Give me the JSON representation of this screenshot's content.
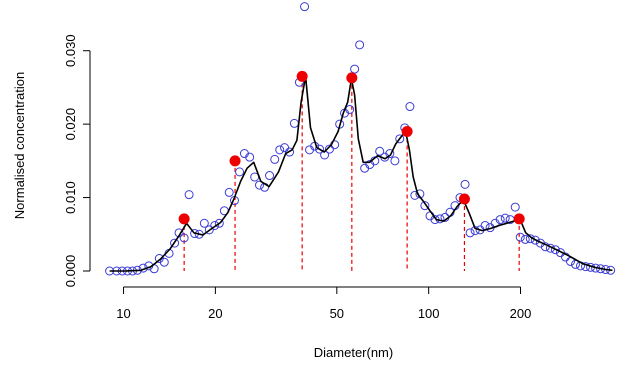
{
  "chart_data": {
    "type": "scatter",
    "title": "",
    "xlabel": "Diameter(nm)",
    "ylabel": "Normalised concentration",
    "x_scale": "log",
    "xlim": [
      8.5,
      440
    ],
    "ylim": [
      0,
      0.035
    ],
    "x_ticks": [
      10,
      20,
      50,
      100,
      200
    ],
    "x_tick_labels": [
      "10",
      "20",
      "50",
      "100",
      "200"
    ],
    "y_ticks": [
      0,
      0.01,
      0.02,
      0.03
    ],
    "y_tick_labels": [
      "0.000",
      "0.010",
      "0.020",
      "0.030"
    ],
    "grid": false,
    "colors": {
      "points": "#3b3bd6",
      "curve": "#000000",
      "peaks": "#ee0000",
      "peak_lines": "#ee0000"
    },
    "series": [
      {
        "kind": "points",
        "x": [
          9.0,
          9.5,
          9.9,
          10.3,
          10.7,
          11.1,
          11.6,
          12.1,
          12.6,
          13.1,
          13.6,
          14.1,
          14.7,
          15.2,
          15.8,
          16.4,
          17.1,
          17.7,
          18.4,
          19.1,
          19.9,
          20.6,
          21.4,
          22.2,
          23.1,
          24.0,
          24.9,
          25.9,
          26.9,
          27.9,
          29.0,
          30.1,
          31.3,
          32.5,
          33.7,
          35.0,
          36.3,
          37.7,
          39.2,
          40.7,
          42.3,
          43.9,
          45.6,
          47.3,
          49.2,
          51.1,
          53.0,
          55.1,
          57.2,
          59.4,
          61.7,
          64.1,
          66.6,
          69.1,
          71.8,
          74.6,
          77.5,
          80.4,
          83.5,
          86.8,
          90.1,
          93.6,
          97.2,
          101,
          104.9,
          108.9,
          113.1,
          117.5,
          122,
          126.7,
          131.6,
          136.7,
          142,
          147.4,
          153.1,
          159,
          165.2,
          171.5,
          178.2,
          185,
          192.2,
          199.6,
          207.3,
          215.3,
          223.6,
          232.3,
          241.2,
          250.6,
          260.2,
          270.3,
          280.7,
          291.6,
          302.8,
          314.5,
          326.7,
          339.3,
          352.4,
          366,
          380.1,
          394.8
        ],
        "y": [
          0.0,
          0.0,
          0.0,
          0.0,
          0.0,
          0.0001,
          0.0004,
          0.0007,
          0.0003,
          0.0017,
          0.0012,
          0.0024,
          0.0038,
          0.0052,
          0.0045,
          0.0104,
          0.0051,
          0.005,
          0.0065,
          0.0056,
          0.0062,
          0.0065,
          0.0082,
          0.0107,
          0.0096,
          0.0135,
          0.016,
          0.0155,
          0.0128,
          0.0117,
          0.0114,
          0.013,
          0.0152,
          0.0165,
          0.0168,
          0.0162,
          0.0201,
          0.0257,
          0.036,
          0.0165,
          0.017,
          0.0166,
          0.0158,
          0.0166,
          0.0172,
          0.02,
          0.0215,
          0.022,
          0.0275,
          0.0308,
          0.014,
          0.0145,
          0.015,
          0.0163,
          0.0155,
          0.016,
          0.015,
          0.018,
          0.0195,
          0.0224,
          0.0103,
          0.0105,
          0.0089,
          0.0075,
          0.007,
          0.0071,
          0.0073,
          0.008,
          0.0089,
          0.01,
          0.0118,
          0.0052,
          0.0055,
          0.0056,
          0.0062,
          0.0059,
          0.0065,
          0.007,
          0.0072,
          0.007,
          0.0087,
          0.0046,
          0.0043,
          0.0044,
          0.0042,
          0.0038,
          0.0033,
          0.0031,
          0.0029,
          0.0025,
          0.0019,
          0.0013,
          0.0009,
          0.0007,
          0.0006,
          0.0005,
          0.0004,
          0.0003,
          0.0002,
          0.0001
        ]
      },
      {
        "kind": "line",
        "x": [
          9.0,
          10.2,
          11.4,
          12.3,
          13.2,
          14.2,
          15.2,
          16.1,
          17.0,
          18.2,
          19.5,
          20.8,
          22.0,
          23.0,
          24.2,
          25.4,
          26.7,
          28.2,
          30.0,
          32.2,
          34.0,
          35.7,
          37.0,
          38.2,
          39.5,
          41.0,
          43.0,
          45.5,
          48.0,
          50.5,
          52.5,
          54.3,
          55.8,
          57.2,
          58.8,
          61.0,
          64.0,
          68.0,
          72.0,
          75.0,
          78.0,
          81.0,
          84.0,
          86.5,
          89.0,
          92.0,
          96.0,
          101,
          106,
          112,
          118,
          124,
          130,
          136,
          142,
          150,
          160,
          170,
          180,
          190,
          199,
          208,
          218,
          230,
          245,
          265,
          290,
          320,
          350,
          380,
          400
        ],
        "y": [
          0.0,
          0.0,
          0.0001,
          0.0006,
          0.0016,
          0.003,
          0.0048,
          0.0065,
          0.0052,
          0.0049,
          0.0058,
          0.0066,
          0.008,
          0.0098,
          0.0122,
          0.014,
          0.0148,
          0.0122,
          0.0115,
          0.0135,
          0.016,
          0.0165,
          0.0178,
          0.023,
          0.0265,
          0.0195,
          0.0168,
          0.0162,
          0.0172,
          0.019,
          0.0215,
          0.023,
          0.0262,
          0.024,
          0.018,
          0.0148,
          0.0148,
          0.0157,
          0.0153,
          0.0158,
          0.0173,
          0.0182,
          0.019,
          0.0165,
          0.0128,
          0.0105,
          0.0095,
          0.0082,
          0.007,
          0.0068,
          0.0075,
          0.0088,
          0.0097,
          0.0078,
          0.0058,
          0.0055,
          0.0058,
          0.0062,
          0.0065,
          0.0068,
          0.0071,
          0.0052,
          0.0045,
          0.004,
          0.0035,
          0.0028,
          0.002,
          0.001,
          0.0005,
          0.0002,
          0.0001
        ]
      },
      {
        "kind": "peaks",
        "x": [
          15.8,
          23.2,
          38.5,
          56.0,
          85.0,
          131.0,
          198.0
        ],
        "y": [
          0.0071,
          0.015,
          0.0265,
          0.0263,
          0.019,
          0.0098,
          0.0071
        ]
      }
    ]
  }
}
